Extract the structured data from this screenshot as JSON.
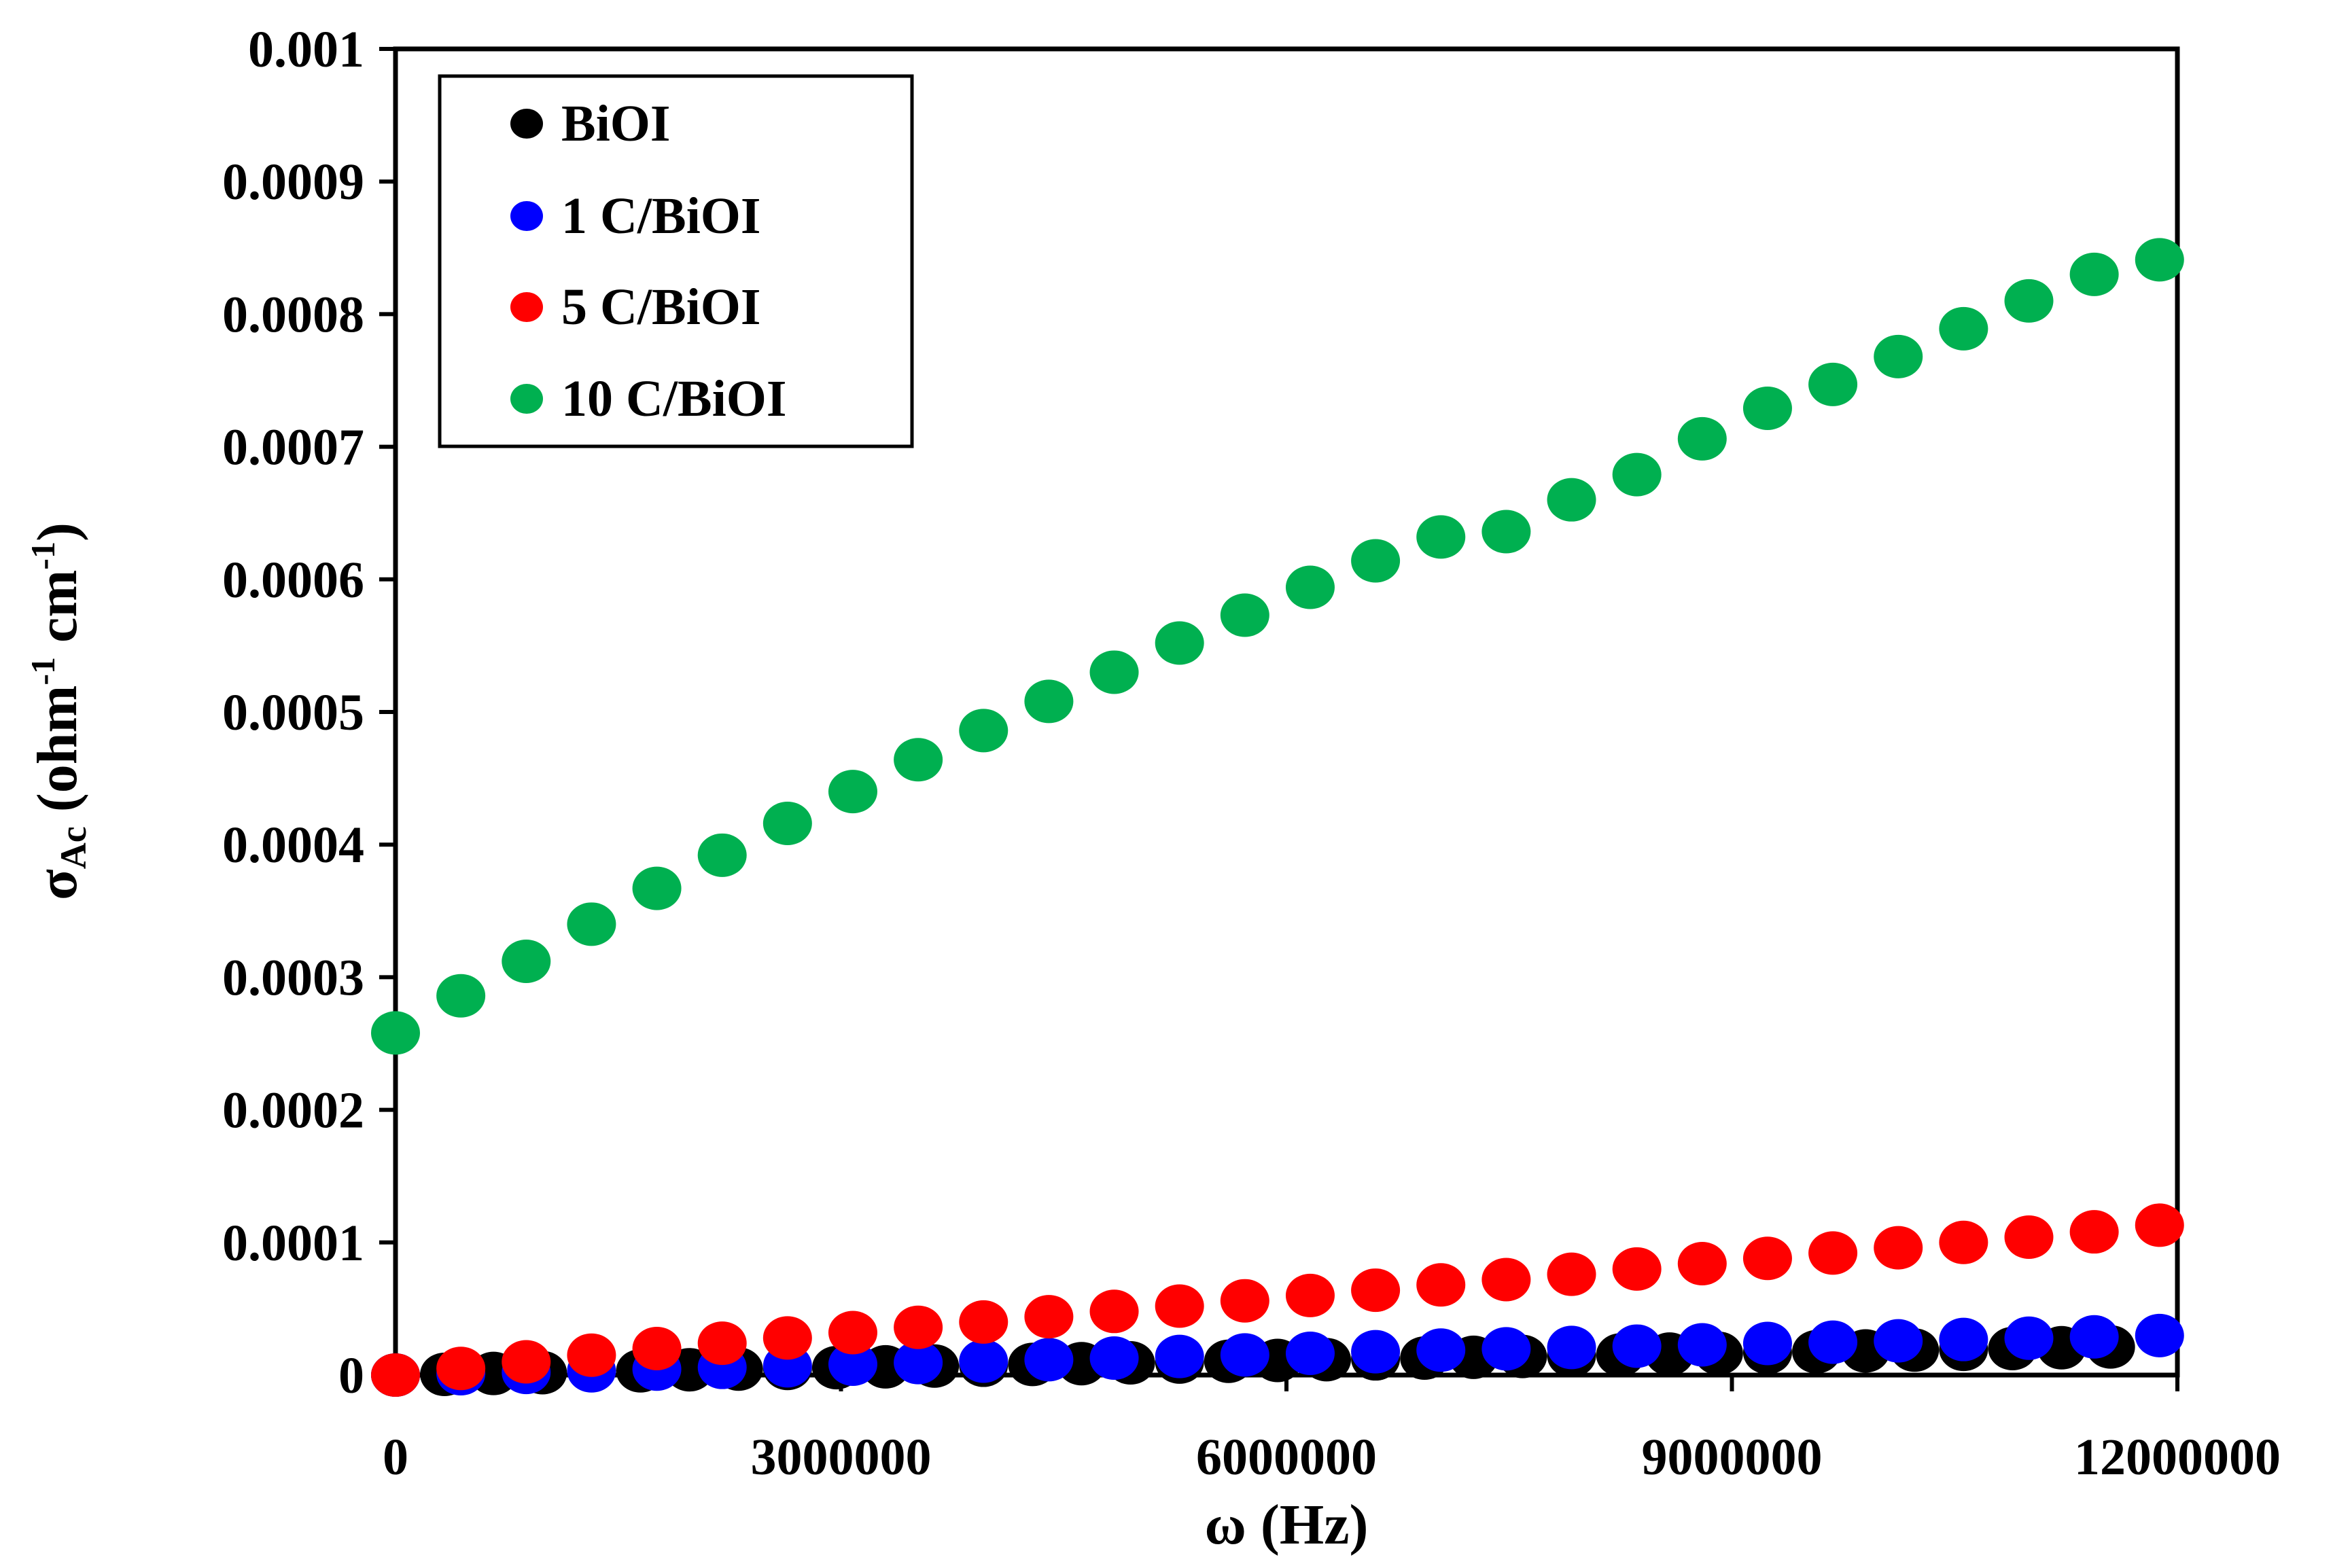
{
  "chart_data": {
    "type": "scatter",
    "title": "",
    "xlabel": "ω (Hz)",
    "ylabel": "σAc (ohm-1 cm-1)",
    "ylabel_parts": {
      "symbol": "σ",
      "subscript": "Ac",
      "open": " (ohm",
      "exp1": "-1",
      "mid": " cm",
      "exp2": "-1",
      "close": ")"
    },
    "xlim": [
      0,
      12000000
    ],
    "ylim": [
      0,
      0.001
    ],
    "x_ticks": [
      0,
      3000000,
      6000000,
      9000000,
      12000000
    ],
    "x_tick_labels": [
      "0",
      "3000000",
      "6000000",
      "9000000",
      "12000000"
    ],
    "y_ticks": [
      0,
      0.0001,
      0.0002,
      0.0003,
      0.0004,
      0.0005,
      0.0006,
      0.0007,
      0.0008,
      0.0009,
      0.001
    ],
    "y_tick_labels": [
      "0",
      "0.0001",
      "0.0002",
      "0.0003",
      "0.0004",
      "0.0005",
      "0.0006",
      "0.0007",
      "0.0008",
      "0.0009",
      "0.001"
    ],
    "grid": false,
    "legend_position": "top-left",
    "series": [
      {
        "name": "BiOI",
        "color": "#000000",
        "x": [
          0,
          330000,
          660000,
          990000,
          1650000,
          1980000,
          2310000,
          2640000,
          2970000,
          3300000,
          3630000,
          3960000,
          4290000,
          4620000,
          4950000,
          5280000,
          5610000,
          5940000,
          6270000,
          6600000,
          6930000,
          7260000,
          7590000,
          7920000,
          8250000,
          8580000,
          8910000,
          9240000,
          9570000,
          9900000,
          10230000,
          10560000,
          10890000,
          11220000,
          11550000
        ],
        "y": [
          0,
          5e-07,
          1.2e-06,
          1.8e-06,
          3.2e-06,
          4e-06,
          4.5e-06,
          5e-06,
          5.6e-06,
          6.2e-06,
          6.8e-06,
          7.4e-06,
          8e-06,
          8.6e-06,
          9.2e-06,
          9.8e-06,
          1.04e-05,
          1.1e-05,
          1.16e-05,
          1.22e-05,
          1.28e-05,
          1.34e-05,
          1.4e-05,
          1.46e-05,
          1.52e-05,
          1.58e-05,
          1.64e-05,
          1.7e-05,
          1.76e-05,
          1.82e-05,
          1.88e-05,
          1.94e-05,
          2e-05,
          2.06e-05,
          2.12e-05
        ]
      },
      {
        "name": "1 C/BiOI",
        "color": "#0000ff",
        "x": [
          0,
          440000,
          880000,
          1320000,
          1760000,
          2200000,
          2640000,
          3080000,
          3520000,
          3960000,
          4400000,
          4840000,
          5280000,
          5720000,
          6160000,
          6600000,
          7040000,
          7480000,
          7920000,
          8360000,
          8800000,
          9240000,
          9680000,
          10120000,
          10560000,
          11000000,
          11440000,
          11880000
        ],
        "y": [
          0,
          1e-06,
          2e-06,
          3.2e-06,
          4.5e-06,
          5.8e-06,
          7e-06,
          8.2e-06,
          9.4e-06,
          1.05e-05,
          1.16e-05,
          1.28e-05,
          1.4e-05,
          1.52e-05,
          1.64e-05,
          1.76e-05,
          1.88e-05,
          1.98e-05,
          2.08e-05,
          2.18e-05,
          2.28e-05,
          2.38e-05,
          2.48e-05,
          2.58e-05,
          2.68e-05,
          2.78e-05,
          2.88e-05,
          2.98e-05
        ]
      },
      {
        "name": "5 C/BiOI",
        "color": "#ff0000",
        "x": [
          0,
          440000,
          880000,
          1320000,
          1760000,
          2200000,
          2640000,
          3080000,
          3520000,
          3960000,
          4400000,
          4840000,
          5280000,
          5720000,
          6160000,
          6600000,
          7040000,
          7480000,
          7920000,
          8360000,
          8800000,
          9240000,
          9680000,
          10120000,
          10560000,
          11000000,
          11440000,
          11880000
        ],
        "y": [
          0,
          5e-06,
          1e-05,
          1.5e-05,
          2e-05,
          2.4e-05,
          2.8e-05,
          3.2e-05,
          3.6e-05,
          4e-05,
          4.4e-05,
          4.8e-05,
          5.2e-05,
          5.6e-05,
          6e-05,
          6.4e-05,
          6.8e-05,
          7.2e-05,
          7.6e-05,
          8e-05,
          8.4e-05,
          8.8e-05,
          9.2e-05,
          9.6e-05,
          0.0001,
          0.000104,
          0.000108,
          0.000113
        ]
      },
      {
        "name": "10 C/BiOI",
        "color": "#00b050",
        "x": [
          0,
          440000,
          880000,
          1320000,
          1760000,
          2200000,
          2640000,
          3080000,
          3520000,
          3960000,
          4400000,
          4840000,
          5280000,
          5720000,
          6160000,
          6600000,
          7040000,
          7480000,
          7920000,
          8360000,
          8800000,
          9240000,
          9680000,
          10120000,
          10560000,
          11000000,
          11440000,
          11880000
        ],
        "y": [
          0.000258,
          0.000286,
          0.000312,
          0.00034,
          0.000367,
          0.000392,
          0.000416,
          0.00044,
          0.000464,
          0.000486,
          0.000508,
          0.00053,
          0.000552,
          0.000573,
          0.000594,
          0.000614,
          0.000632,
          0.000636,
          0.00066,
          0.000679,
          0.000706,
          0.000729,
          0.000747,
          0.000768,
          0.000789,
          0.00081,
          0.00083,
          0.000841
        ]
      }
    ]
  }
}
